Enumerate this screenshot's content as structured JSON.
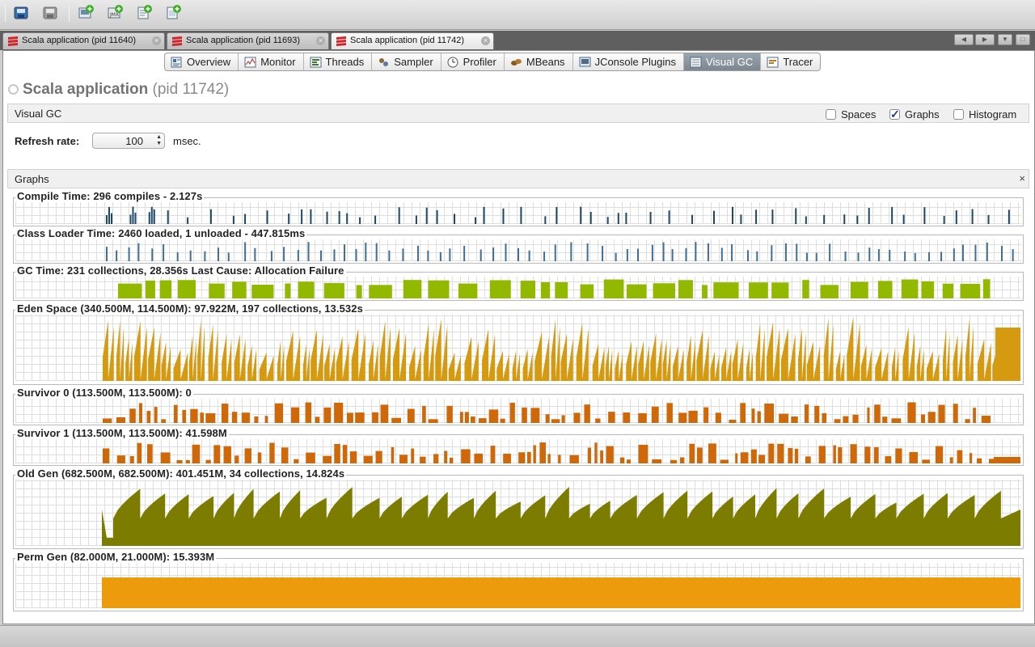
{
  "toolbar": {
    "buttons": [
      "open-icon",
      "save-icon",
      "add-host-icon",
      "add-jmx-icon",
      "add-snapshot-icon",
      "add-coredump-icon"
    ]
  },
  "document_tabs": [
    {
      "label": "Scala application (pid 11640)",
      "active": false
    },
    {
      "label": "Scala application (pid 11693)",
      "active": false
    },
    {
      "label": "Scala application (pid 11742)",
      "active": true
    }
  ],
  "view_tabs": [
    {
      "label": "Overview",
      "icon": "overview-icon"
    },
    {
      "label": "Monitor",
      "icon": "monitor-icon"
    },
    {
      "label": "Threads",
      "icon": "threads-icon"
    },
    {
      "label": "Sampler",
      "icon": "sampler-icon"
    },
    {
      "label": "Profiler",
      "icon": "profiler-icon"
    },
    {
      "label": "MBeans",
      "icon": "mbeans-icon"
    },
    {
      "label": "JConsole Plugins",
      "icon": "jconsole-icon"
    },
    {
      "label": "Visual GC",
      "icon": "visualgc-icon",
      "active": true
    },
    {
      "label": "Tracer",
      "icon": "tracer-icon"
    }
  ],
  "app": {
    "name": "Scala application",
    "pid": "(pid 11742)"
  },
  "visual_gc": {
    "title": "Visual GC",
    "options": [
      {
        "label": "Spaces",
        "checked": false
      },
      {
        "label": "Graphs",
        "checked": true
      },
      {
        "label": "Histogram",
        "checked": false
      }
    ],
    "refresh_label": "Refresh rate:",
    "refresh_value": "100",
    "refresh_unit": "msec."
  },
  "graphs_section": {
    "title": "Graphs",
    "close": "×"
  },
  "colors": {
    "compile": "#1c4868",
    "class_loader": "#3f6f95",
    "gc": "#92b800",
    "eden": "#d69a10",
    "survivor": "#cf6808",
    "old_gen": "#7c7c00",
    "perm_gen": "#eb9b0c"
  },
  "graphs": [
    {
      "key": "compile",
      "title": "Compile Time: 296 compiles - 2.127s",
      "title_color": "#25506f",
      "kind": "spikes",
      "seed": 3
    },
    {
      "key": "class_loader",
      "title": "Class Loader Time: 2460 loaded, 1 unloaded - 447.815ms",
      "title_color": "#3f6f95",
      "kind": "ticks",
      "seed": 7
    },
    {
      "key": "gc",
      "title": "GC Time: 231 collections, 28.356s  Last Cause: Allocation Failure",
      "title_color": "#86a800",
      "kind": "blocks",
      "seed": 11
    },
    {
      "key": "eden",
      "title": "Eden Space (340.500M, 114.500M): 97.922M, 197 collections, 13.532s",
      "title_color": "#c98a08",
      "kind": "sawtooth",
      "seed": 13
    },
    {
      "key": "survivor",
      "title": "Survivor 0 (113.500M, 113.500M): 0",
      "title_color": "#bf6a0a",
      "kind": "steps",
      "seed": 17
    },
    {
      "key": "survivor",
      "title": "Survivor 1 (113.500M, 113.500M): 41.598M",
      "title_color": "#bf6a0a",
      "kind": "steps",
      "seed": 19
    },
    {
      "key": "old_gen",
      "title": "Old Gen (682.500M, 682.500M): 401.451M, 34 collections, 14.824s",
      "title_color": "#b8860b",
      "kind": "rising",
      "seed": 23
    },
    {
      "key": "perm_gen",
      "title": "Perm Gen (82.000M, 21.000M): 15.393M",
      "title_color": "#d4960a",
      "kind": "flat",
      "seed": 29
    }
  ]
}
